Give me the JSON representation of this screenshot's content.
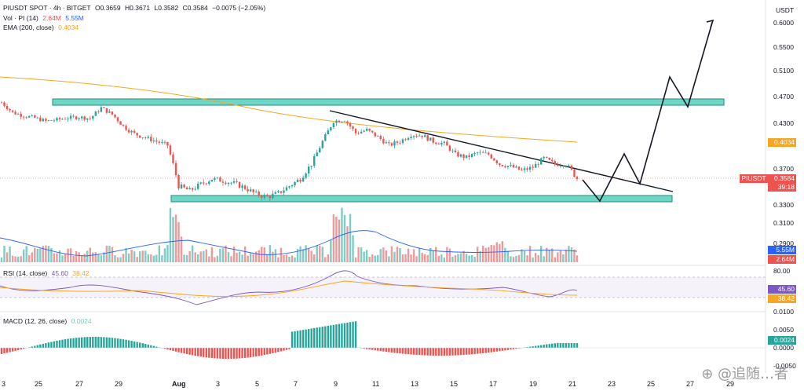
{
  "header": {
    "symbol": "PIUSDT SPOT · 4h · BITGET",
    "open": "O0.3659",
    "high": "H0.3671",
    "low": "L0.3582",
    "close": "C0.3584",
    "change": "−0.0075 (−2.05%)"
  },
  "volume_legend": {
    "label": "Vol · PI (14)",
    "v1": "2.64M",
    "v2": "5.55M"
  },
  "ema_legend": {
    "label": "EMA (200, close)",
    "value": "0.4034"
  },
  "rsi_legend": {
    "label": "RSI (14, close)",
    "v1": "45.60",
    "v2": "38.42"
  },
  "macd_legend": {
    "label": "MACD (12, 26, close)",
    "value": "0.0024"
  },
  "colors": {
    "up": "#26a69a",
    "down": "#ef5350",
    "ema": "#f5a623",
    "zone": "#6fd5c4",
    "rsi": "#7e57c2"
  },
  "chart_data": {
    "type": "candlestick",
    "currency": "USDT",
    "price_axis": [
      "0.6000",
      "0.5500",
      "0.5100",
      "0.4700",
      "0.4300",
      "0.3700",
      "0.3300",
      "0.3100",
      "0.2900"
    ],
    "x_axis": [
      "3",
      "25",
      "27",
      "29",
      "Aug",
      "3",
      "5",
      "7",
      "9",
      "11",
      "13",
      "15",
      "17",
      "19",
      "21",
      "23",
      "25",
      "27",
      "29"
    ],
    "price_tags": {
      "ema": "0.4034",
      "symbol": "PIUSDT",
      "last": "0.3584",
      "countdown": "39:18",
      "vol1": "5.55M",
      "vol2": "2.64M"
    },
    "rsi_axis": [
      "80.00",
      "0.0100"
    ],
    "rsi_tags": [
      "45.60",
      "38.42"
    ],
    "macd_axis": [
      "0.0050",
      "0.0000",
      "-0.0050"
    ],
    "macd_tag": "0.0024",
    "ema_points": [
      [
        0,
        0.48
      ],
      [
        0.15,
        0.47
      ],
      [
        0.25,
        0.46
      ],
      [
        0.35,
        0.445
      ],
      [
        0.45,
        0.43
      ],
      [
        0.55,
        0.425
      ],
      [
        0.65,
        0.418
      ],
      [
        0.72,
        0.405
      ]
    ],
    "price_path": [
      0.46,
      0.445,
      0.44,
      0.437,
      0.432,
      0.434,
      0.437,
      0.438,
      0.436,
      0.452,
      0.442,
      0.425,
      0.415,
      0.41,
      0.405,
      0.4,
      0.35,
      0.345,
      0.352,
      0.358,
      0.356,
      0.353,
      0.348,
      0.341,
      0.338,
      0.342,
      0.35,
      0.358,
      0.375,
      0.405,
      0.432,
      0.434,
      0.416,
      0.42,
      0.411,
      0.4,
      0.405,
      0.414,
      0.413,
      0.405,
      0.402,
      0.388,
      0.384,
      0.39,
      0.388,
      0.375,
      0.372,
      0.367,
      0.371,
      0.383,
      0.375,
      0.375,
      0.3584
    ],
    "resistance_zone": [
      0.458,
      0.466
    ],
    "support_zone": [
      0.338,
      0.343
    ]
  }
}
